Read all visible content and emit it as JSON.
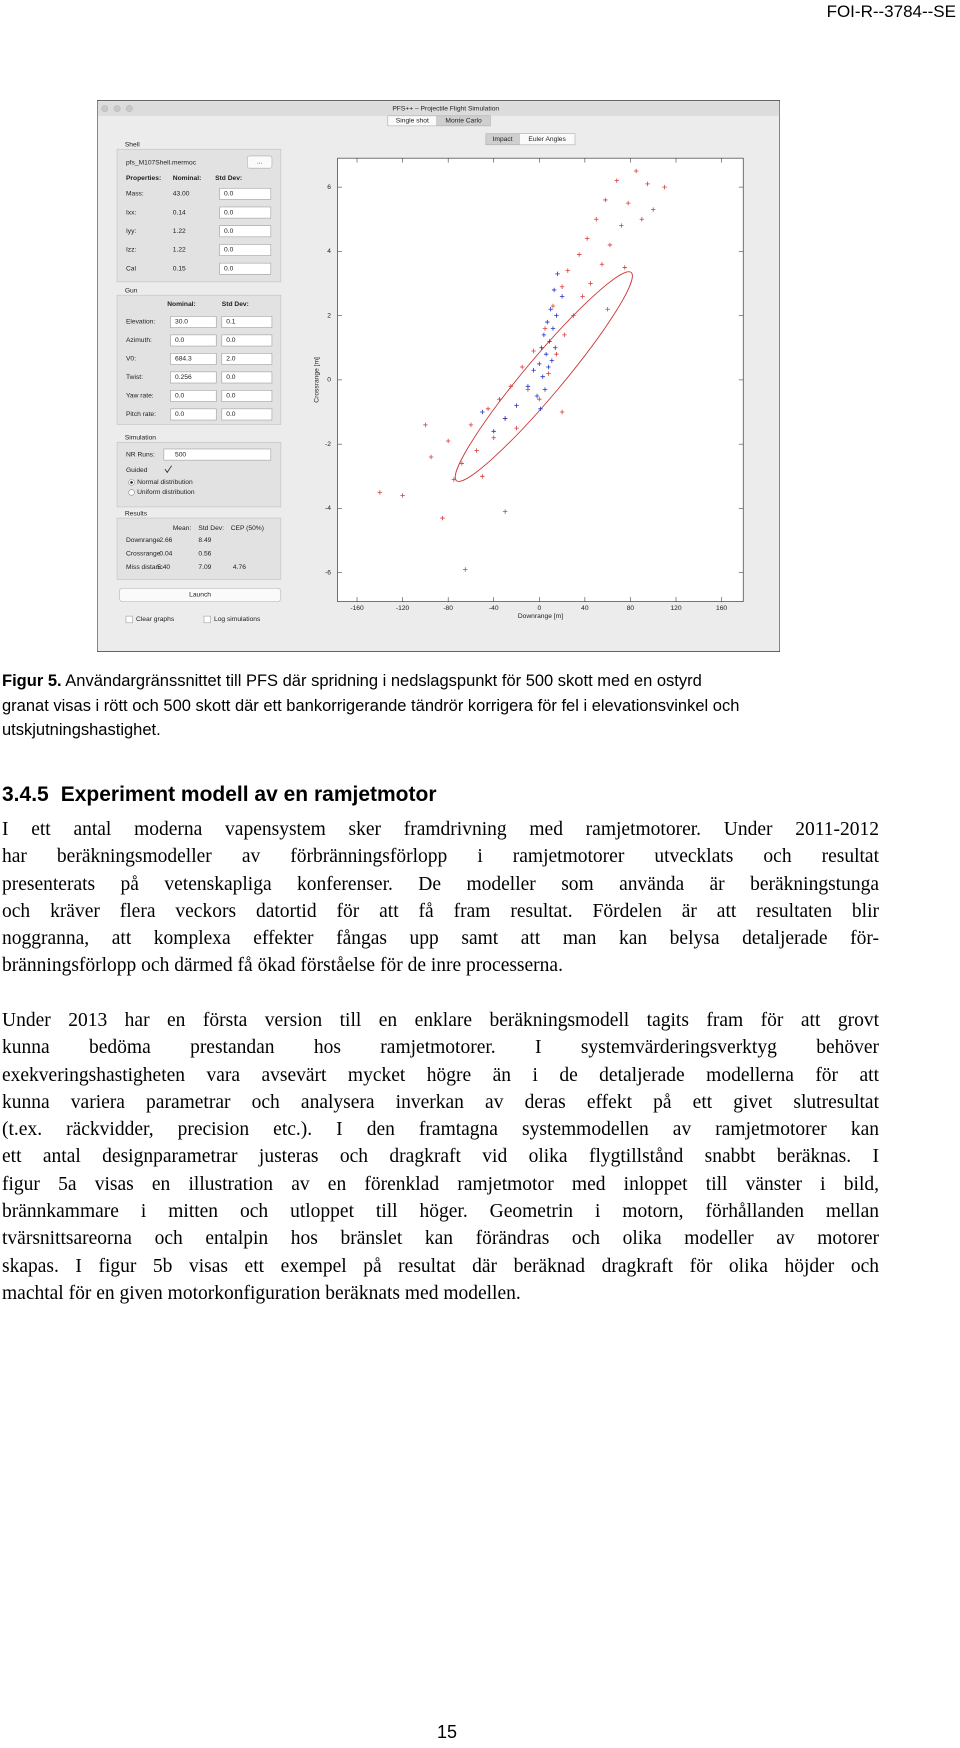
{
  "header": {
    "report_id": "FOI-R--3784--SE"
  },
  "screenshot": {
    "title": "PFS++ – Projectile Flight Simulation",
    "tabs": [
      "Single shot",
      "Monte Carlo"
    ],
    "plot_tabs": [
      "Impact",
      "Euler Angles"
    ],
    "shell": {
      "group": "Shell",
      "file": "pfs_M107Shell.mermoc",
      "browse": "...",
      "header": [
        "Properties:",
        "Nominal:",
        "Std Dev:"
      ],
      "rows": [
        [
          "Mass:",
          "43.00",
          "0.0"
        ],
        [
          "Ixx:",
          "0.14",
          "0.0"
        ],
        [
          "Iyy:",
          "1.22",
          "0.0"
        ],
        [
          "Izz:",
          "1.22",
          "0.0"
        ],
        [
          "Cal",
          "0.15",
          "0.0"
        ]
      ]
    },
    "gun": {
      "group": "Gun",
      "header": [
        "Nominal:",
        "Std Dev:"
      ],
      "rows": [
        [
          "Elevation:",
          "30.0",
          "0.1"
        ],
        [
          "Azimuth:",
          "0.0",
          "0.0"
        ],
        [
          "V0:",
          "684.3",
          "2.0"
        ],
        [
          "Twist:",
          "0.256",
          "0.0"
        ],
        [
          "Yaw rate:",
          "0.0",
          "0.0"
        ],
        [
          "Pitch rate:",
          "0.0",
          "0.0"
        ]
      ]
    },
    "simulation": {
      "group": "Simulation",
      "runs_label": "NR Runs:",
      "runs": "500",
      "guided": "Guided",
      "options": [
        "Normal distribution",
        "Uniform distribution"
      ]
    },
    "results": {
      "group": "Results",
      "header": [
        "Mean:",
        "Std Dev:",
        "CEP (50%)"
      ],
      "rows": [
        [
          "Downrange",
          "-2.66",
          "8.49"
        ],
        [
          "Crossrange",
          "-0.04",
          "0.56"
        ],
        [
          "Miss distanc",
          "5.40",
          "7.09",
          "4.76"
        ]
      ]
    },
    "launch": "Launch",
    "checkboxes": [
      "Clear graphs",
      "Log simulations"
    ],
    "plot": {
      "type": "scatter",
      "xlabel": "Downrange [m]",
      "ylabel": "Crossrange [m]",
      "xlim": [
        -177,
        179
      ],
      "ylim": [
        -6.9,
        6.9
      ],
      "xticks": [
        -160,
        -120,
        -80,
        -40,
        0,
        40,
        80,
        120,
        160
      ],
      "yticks": [
        -6,
        -4,
        -2,
        0,
        2,
        4,
        6
      ],
      "series": [
        {
          "color": "#d93b3b",
          "x": [
            -140,
            -120,
            -95,
            -85,
            -80,
            -75,
            -68,
            -60,
            -55,
            -50,
            -45,
            -40,
            -35,
            -30,
            -25,
            -20,
            -15,
            -10,
            -5,
            0,
            5,
            8,
            12,
            15,
            20,
            22,
            25,
            30,
            35,
            38,
            42,
            45,
            50,
            55,
            58,
            62,
            68,
            72,
            78,
            85,
            90,
            95,
            100,
            110,
            -65,
            -30,
            20,
            60,
            -100,
            75
          ],
          "y": [
            -3.5,
            -3.6,
            -2.4,
            -4.3,
            -1.9,
            -3.1,
            -2.6,
            -1.4,
            -2.2,
            -3.0,
            -0.9,
            -1.8,
            -0.6,
            -1.2,
            -0.2,
            -1.5,
            0.4,
            -0.3,
            0.9,
            -0.6,
            1.6,
            0.2,
            2.3,
            0.8,
            2.9,
            1.4,
            3.4,
            2.0,
            3.9,
            2.6,
            4.4,
            3.0,
            5.0,
            3.6,
            5.6,
            4.2,
            6.2,
            4.8,
            5.5,
            6.5,
            5.0,
            6.1,
            5.3,
            6.0,
            -5.9,
            -4.1,
            -1.0,
            2.2,
            -1.4,
            3.5
          ]
        },
        {
          "color": "#2233cc",
          "x": [
            -10,
            -5,
            -2,
            0,
            2,
            3,
            4,
            5,
            6,
            7,
            8,
            9,
            10,
            11,
            12,
            13,
            14,
            15,
            -20,
            -30,
            -50,
            20,
            -40,
            16,
            1
          ],
          "y": [
            -0.2,
            0.3,
            -0.5,
            0.5,
            1.0,
            0.1,
            1.4,
            -0.3,
            0.8,
            1.8,
            0.4,
            1.2,
            2.2,
            0.6,
            1.6,
            2.8,
            1.0,
            2.0,
            -0.8,
            -1.2,
            -1.0,
            2.6,
            -1.6,
            3.3,
            -0.9
          ]
        }
      ]
    }
  },
  "caption": {
    "label": "Figur 5.",
    "lines": [
      "Användargränssnittet till PFS där spridning i nedslagspunkt för 500 skott med en ostyrd",
      "granat visas i rött och 500 skott där ett bankorrigerande tändrör korrigera för fel i elevationsvinkel och",
      "utskjutningshastighet."
    ]
  },
  "section": {
    "number": "3.4.5",
    "title": "Experiment modell av en ramjetmotor"
  },
  "paragraphs": [
    [
      "I ett antal moderna vapensystem sker framdrivning med ramjetmotorer. Under 2011-2012",
      "har beräkningsmodeller av förbränningsförlopp i ramjetmotorer utvecklats och resultat",
      "presenterats på vetenskapliga konferenser. De modeller som använda är beräkningstunga",
      "och kräver flera veckors datortid för att få fram resultat. Fördelen är att resultaten blir",
      "noggranna, att komplexa effekter fångas upp samt att man kan belysa detaljerade för-",
      "bränningsförlopp och därmed få ökad förståelse för de inre processerna."
    ],
    [
      "Under 2013 har en första version till en enklare beräkningsmodell tagits fram för att grovt",
      "kunna bedöma prestandan hos ramjetmotorer. I systemvärderingsverktyg behöver",
      "exekveringshastigheten vara avsevärt mycket högre än i de detaljerade modellerna för att",
      "kunna variera parametrar och analysera inverkan av deras effekt på ett givet slutresultat",
      "(t.ex. räckvidder, precision etc.). I den framtagna systemmodellen av ramjetmotorer kan",
      "ett antal designparametrar justeras och dragkraft vid olika flygtillstånd snabbt beräknas. I",
      "figur 5a visas en illustration av en förenklad ramjetmotor med inloppet till vänster i bild,",
      "brännkammare i mitten och utloppet till höger. Geometrin i motorn, förhållanden mellan",
      "tvärsnittsareorna och entalpin hos bränslet kan förändras och olika modeller av motorer",
      "skapas. I figur 5b visas ett exempel på resultat där beräknad dragkraft för olika höjder och",
      "machtal för en given motorkonfiguration beräknats med modellen."
    ]
  ],
  "page_number": "15"
}
